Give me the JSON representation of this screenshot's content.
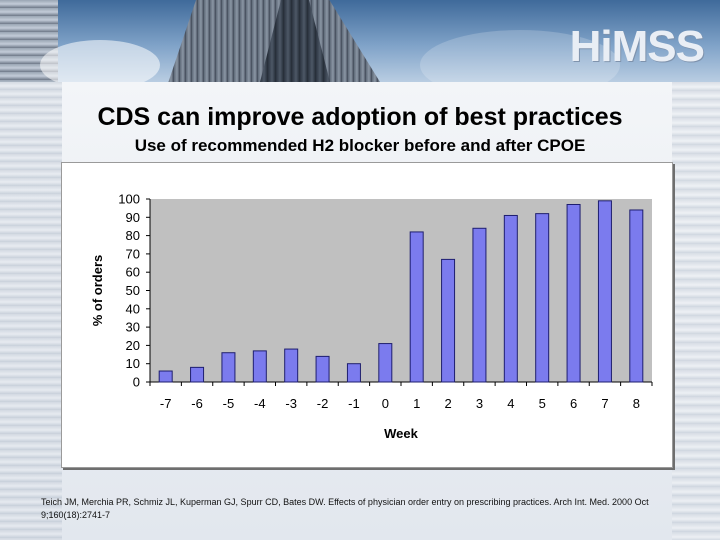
{
  "slide": {
    "logo_text": "HiMSS",
    "title": "CDS can improve adoption of best practices",
    "subtitle": "Use of recommended H2 blocker before and after CPOE",
    "citation": "Teich JM, Merchia PR, Schmiz JL, Kuperman GJ, Spurr CD, Bates DW. Effects of physician order entry on prescribing practices. Arch Int. Med. 2000 Oct 9;160(18):2741-7"
  },
  "colors": {
    "bar_fill": "#7b7bee",
    "bar_stroke": "#1e1e6e",
    "plot_bg": "#c0c0c0"
  },
  "chart_data": {
    "type": "bar",
    "title": "",
    "xlabel": "Week",
    "ylabel": "% of orders",
    "ylim": [
      0,
      100
    ],
    "yticks": [
      0,
      10,
      20,
      30,
      40,
      50,
      60,
      70,
      80,
      90,
      100
    ],
    "categories": [
      "-7",
      "-6",
      "-5",
      "-4",
      "-3",
      "-2",
      "-1",
      "0",
      "1",
      "2",
      "3",
      "4",
      "5",
      "6",
      "7",
      "8"
    ],
    "values": [
      6,
      8,
      16,
      17,
      18,
      14,
      10,
      21,
      82,
      67,
      84,
      91,
      92,
      97,
      99,
      94
    ],
    "grid": false
  }
}
